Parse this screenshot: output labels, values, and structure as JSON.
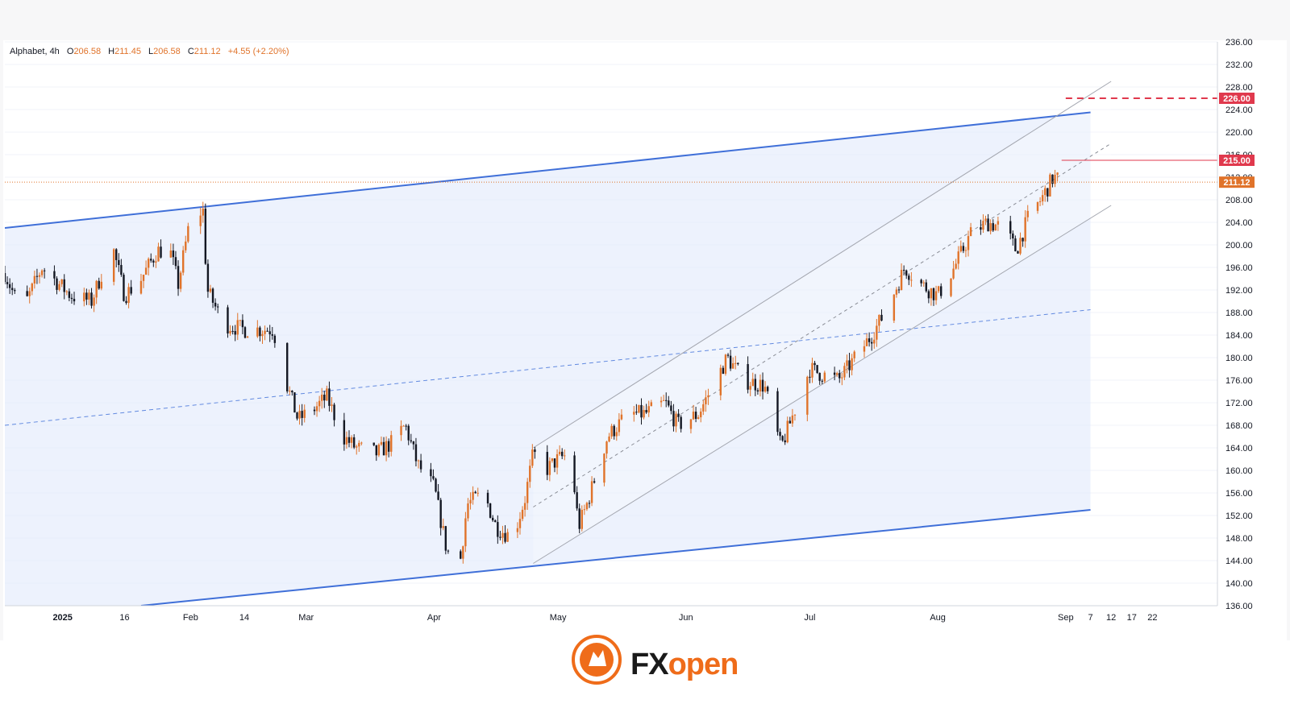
{
  "legend": {
    "symbol": "Alphabet",
    "interval": "4h",
    "open_label": "O",
    "open": "206.58",
    "high_label": "H",
    "high": "211.45",
    "low_label": "L",
    "low": "206.58",
    "close_label": "C",
    "close": "211.12",
    "change": "+4.55 (+2.20%)"
  },
  "brand": {
    "fx": "FX",
    "open": "open"
  },
  "colors": {
    "up": "#e0732a",
    "down": "#131722",
    "channel": "#3f6fd8",
    "channel_fill": "#dfe8fb",
    "resistance": "#e0394d",
    "last_price": "#e0732a"
  },
  "chart_data": {
    "type": "candlestick",
    "ylim": [
      136,
      236
    ],
    "y_ticks": [
      "136.00",
      "140.00",
      "144.00",
      "148.00",
      "152.00",
      "156.00",
      "160.00",
      "164.00",
      "168.00",
      "172.00",
      "176.00",
      "180.00",
      "184.00",
      "188.00",
      "192.00",
      "196.00",
      "200.00",
      "204.00",
      "208.00",
      "212.00",
      "216.00",
      "220.00",
      "224.00",
      "228.00",
      "232.00",
      "236.00"
    ],
    "x_ticks": [
      {
        "label": "2025",
        "date": "2025-01-01"
      },
      {
        "label": "16",
        "date": "2025-01-16"
      },
      {
        "label": "Feb",
        "date": "2025-02-01"
      },
      {
        "label": "14",
        "date": "2025-02-14"
      },
      {
        "label": "Mar",
        "date": "2025-03-01"
      },
      {
        "label": "Apr",
        "date": "2025-04-01"
      },
      {
        "label": "May",
        "date": "2025-05-01"
      },
      {
        "label": "Jun",
        "date": "2025-06-01"
      },
      {
        "label": "Jul",
        "date": "2025-07-01"
      },
      {
        "label": "Aug",
        "date": "2025-08-01"
      },
      {
        "label": "Sep",
        "date": "2025-09-01"
      },
      {
        "label": "7",
        "date": "2025-09-07"
      },
      {
        "label": "12",
        "date": "2025-09-12"
      },
      {
        "label": "17",
        "date": "2025-09-17"
      },
      {
        "label": "22",
        "date": "2025-09-22"
      }
    ],
    "price_path": [
      [
        "2024-12-18",
        195
      ],
      [
        "2024-12-22",
        188
      ],
      [
        "2024-12-27",
        196
      ],
      [
        "2025-01-03",
        191
      ],
      [
        "2025-01-08",
        190
      ],
      [
        "2025-01-13",
        200
      ],
      [
        "2025-01-16",
        191
      ],
      [
        "2025-01-20",
        194
      ],
      [
        "2025-01-24",
        199
      ],
      [
        "2025-01-27",
        199
      ],
      [
        "2025-01-29",
        193
      ],
      [
        "2025-02-01",
        205
      ],
      [
        "2025-02-04",
        206
      ],
      [
        "2025-02-05",
        192
      ],
      [
        "2025-02-09",
        186
      ],
      [
        "2025-02-14",
        185
      ],
      [
        "2025-02-18",
        185
      ],
      [
        "2025-02-21",
        185
      ],
      [
        "2025-02-24",
        176
      ],
      [
        "2025-02-27",
        169
      ],
      [
        "2025-03-03",
        171
      ],
      [
        "2025-03-06",
        173
      ],
      [
        "2025-03-10",
        166
      ],
      [
        "2025-03-13",
        164
      ],
      [
        "2025-03-18",
        163
      ],
      [
        "2025-03-22",
        165
      ],
      [
        "2025-03-25",
        168
      ],
      [
        "2025-03-28",
        161
      ],
      [
        "2025-04-01",
        157
      ],
      [
        "2025-04-04",
        146
      ],
      [
        "2025-04-07",
        142
      ],
      [
        "2025-04-09",
        154
      ],
      [
        "2025-04-13",
        156
      ],
      [
        "2025-04-16",
        150
      ],
      [
        "2025-04-20",
        148
      ],
      [
        "2025-04-23",
        155
      ],
      [
        "2025-04-25",
        163
      ],
      [
        "2025-04-28",
        160
      ],
      [
        "2025-05-01",
        162
      ],
      [
        "2025-05-04",
        163
      ],
      [
        "2025-05-06",
        150
      ],
      [
        "2025-05-08",
        154
      ],
      [
        "2025-05-13",
        166
      ],
      [
        "2025-05-18",
        170
      ],
      [
        "2025-05-22",
        170
      ],
      [
        "2025-05-27",
        172
      ],
      [
        "2025-05-30",
        168
      ],
      [
        "2025-06-04",
        170
      ],
      [
        "2025-06-11",
        180
      ],
      [
        "2025-06-15",
        176
      ],
      [
        "2025-06-20",
        175
      ],
      [
        "2025-06-24",
        164
      ],
      [
        "2025-06-28",
        172
      ],
      [
        "2025-07-01",
        178
      ],
      [
        "2025-07-04",
        177
      ],
      [
        "2025-07-08",
        176
      ],
      [
        "2025-07-12",
        180
      ],
      [
        "2025-07-16",
        184
      ],
      [
        "2025-07-20",
        189
      ],
      [
        "2025-07-24",
        196
      ],
      [
        "2025-07-28",
        193
      ],
      [
        "2025-08-01",
        191
      ],
      [
        "2025-08-05",
        196
      ],
      [
        "2025-08-09",
        202
      ],
      [
        "2025-08-13",
        204
      ],
      [
        "2025-08-17",
        203
      ],
      [
        "2025-08-20",
        199
      ],
      [
        "2025-08-23",
        205
      ],
      [
        "2025-08-26",
        208
      ],
      [
        "2025-08-29",
        212
      ],
      [
        "2025-09-01",
        211.12
      ]
    ],
    "last_price": {
      "value": 211.12,
      "label": "211.12"
    },
    "levels": [
      {
        "value": 226,
        "label": "226.00",
        "style": "dashed",
        "from_date": "2025-09-01"
      },
      {
        "value": 215,
        "label": "215.00",
        "style": "solid",
        "from_date": "2025-08-31"
      }
    ],
    "wide_channel": {
      "upper": [
        [
          "2024-12-18",
          203
        ],
        [
          "2025-09-07",
          223.5
        ]
      ],
      "lower": [
        [
          "2025-01-20",
          136
        ],
        [
          "2025-09-07",
          153
        ]
      ],
      "mid": [
        [
          "2024-12-18",
          168
        ],
        [
          "2025-09-07",
          188.5
        ]
      ]
    },
    "narrow_channel": {
      "upper": [
        [
          "2025-04-25",
          164
        ],
        [
          "2025-09-12",
          229
        ]
      ],
      "lower": [
        [
          "2025-04-25",
          143.5
        ],
        [
          "2025-09-12",
          207
        ]
      ],
      "mid": [
        [
          "2025-04-25",
          153.5
        ],
        [
          "2025-09-12",
          218
        ]
      ]
    }
  }
}
